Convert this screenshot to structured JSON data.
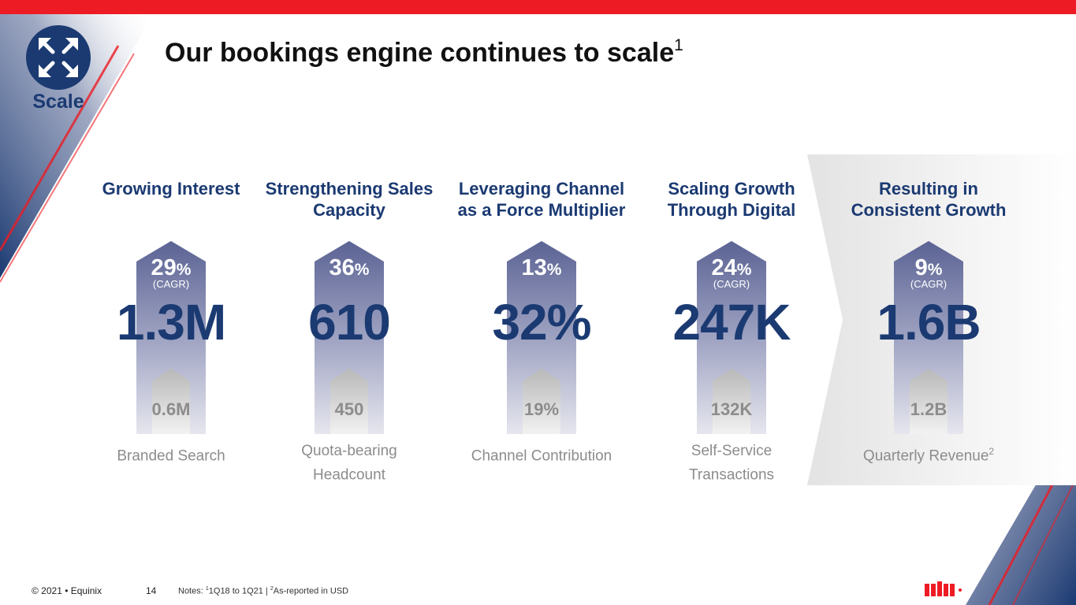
{
  "title": "Our bookings engine continues to scale",
  "title_sup": "1",
  "badge": {
    "label": "Scale",
    "icon": "expand-arrows-icon"
  },
  "columns": [
    {
      "heading": "Growing Interest",
      "growth": "29",
      "pct": "%",
      "cagr": "(CAGR)",
      "current": "1.3M",
      "prior": "0.6M",
      "metric": "Branded Search",
      "metric_sup": ""
    },
    {
      "heading": "Strengthening Sales Capacity",
      "growth": "36",
      "pct": "%",
      "cagr": "",
      "current": "610",
      "prior": "450",
      "metric": "Quota-bearing Headcount",
      "metric_sup": ""
    },
    {
      "heading": "Leveraging Channel as a Force Multiplier",
      "growth": "13",
      "pct": "%",
      "cagr": "",
      "current": "32%",
      "prior": "19%",
      "metric": "Channel Contribution",
      "metric_sup": ""
    },
    {
      "heading": "Scaling Growth Through Digital",
      "growth": "24",
      "pct": "%",
      "cagr": "(CAGR)",
      "current": "247K",
      "prior": "132K",
      "metric": "Self-Service Transactions",
      "metric_sup": ""
    },
    {
      "heading": "Resulting in Consistent Growth",
      "growth": "9",
      "pct": "%",
      "cagr": "(CAGR)",
      "current": "1.6B",
      "prior": "1.2B",
      "metric": "Quarterly Revenue",
      "metric_sup": "2"
    }
  ],
  "footer": {
    "copyright": "© 2021 • Equinix",
    "page": "14",
    "notes_prefix": "Notes: ",
    "note1_sup": "1",
    "note1": "1Q18 to 1Q21  | ",
    "note2_sup": "2",
    "note2": "As-reported in USD"
  },
  "colors": {
    "accent_red": "#ED1C24",
    "navy": "#1B3A72",
    "gray": "#8C8C8C"
  }
}
